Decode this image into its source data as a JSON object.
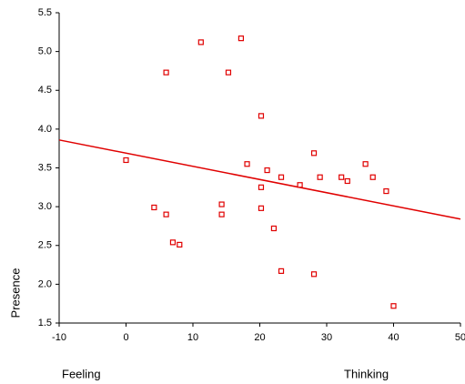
{
  "chart_data": {
    "type": "scatter",
    "y_label": "Presence",
    "annotations": [
      "Feeling",
      "Thinking"
    ],
    "xlim": [
      -10,
      50
    ],
    "xticks": [
      -10,
      0,
      10,
      20,
      30,
      40,
      50
    ],
    "ylim": [
      1.5,
      5.5
    ],
    "yticks": [
      1.5,
      {
        "value": 2,
        "label": "2.0"
      },
      2.5,
      {
        "value": 3,
        "label": "3.0"
      },
      3.5,
      {
        "value": 4,
        "label": "4.0"
      },
      4.5,
      {
        "value": 5,
        "label": "5.0"
      },
      5.5
    ],
    "color": "#e00000",
    "series": [
      {
        "x": [
          0,
          4.2,
          6,
          6,
          7,
          8,
          11.2,
          14.3,
          14.3,
          15.3,
          17.2,
          18.1,
          20.2,
          20.2,
          20.2,
          21.1,
          22.1,
          23.2,
          23.2,
          26,
          28.1,
          28.1,
          29,
          32.2,
          33.1,
          35.8,
          36.9,
          38.9,
          40
        ],
        "values": [
          3.6,
          2.99,
          4.73,
          2.9,
          2.54,
          2.51,
          5.12,
          3.03,
          2.9,
          4.73,
          5.17,
          3.55,
          4.17,
          3.25,
          2.98,
          3.47,
          2.72,
          3.38,
          2.17,
          3.28,
          3.69,
          2.13,
          3.38,
          3.38,
          3.33,
          3.55,
          3.38,
          3.2,
          1.72
        ]
      }
    ],
    "fit_line": {
      "x": [
        -10,
        50
      ],
      "values": [
        3.86,
        2.84
      ]
    }
  }
}
